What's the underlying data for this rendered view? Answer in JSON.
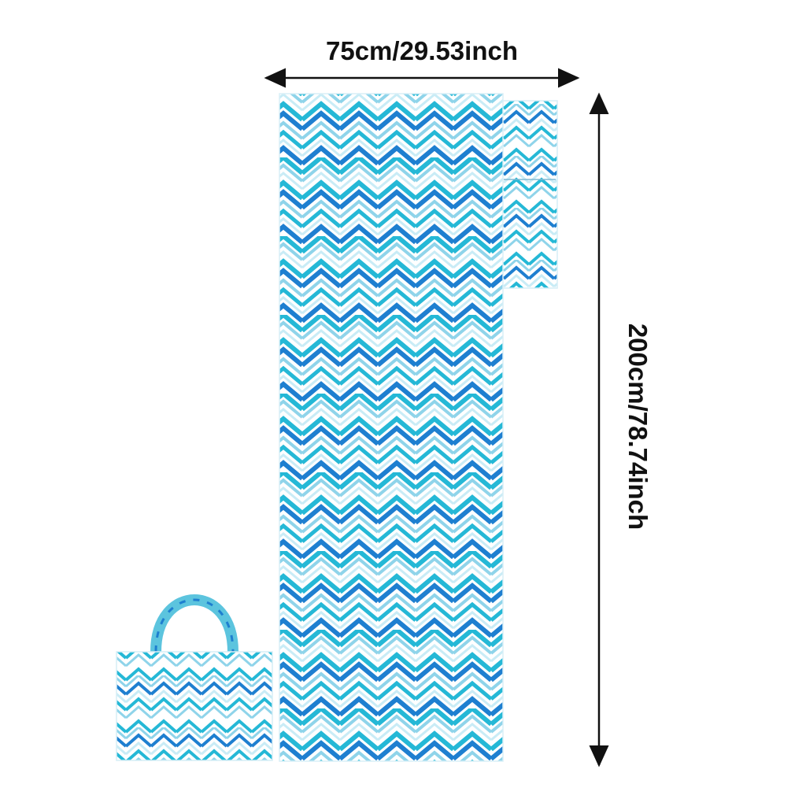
{
  "dimensions": {
    "width_label": "75cm/29.53inch",
    "height_label": "200cm/78.74inch"
  },
  "colors": {
    "chevron_dark": "#1e7fd0",
    "chevron_teal": "#25b8d6",
    "chevron_light": "#8fd4ea",
    "chevron_pale": "#c9ecf6",
    "background": "#ffffff",
    "dimension_line": "#111111"
  },
  "items": [
    "beach-mat",
    "pillow",
    "tote-bag"
  ]
}
